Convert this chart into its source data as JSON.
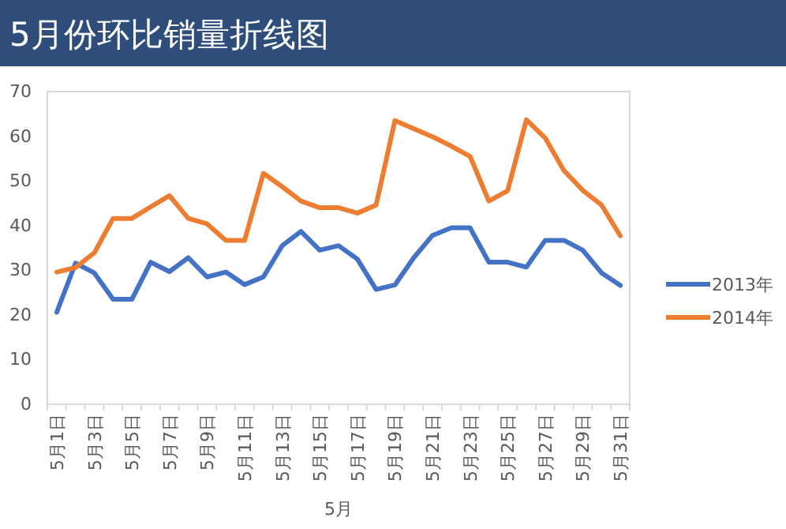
{
  "chart_data": {
    "type": "line",
    "title": "5月份环比销量折线图",
    "xlabel": "5月",
    "categories": [
      "5月1日",
      null,
      "5月3日",
      null,
      "5月5日",
      null,
      "5月7日",
      null,
      "5月9日",
      null,
      "5月11日",
      null,
      "5月13日",
      null,
      "5月15日",
      null,
      "5月17日",
      null,
      "5月19日",
      null,
      "5月21日",
      null,
      "5月23日",
      null,
      "5月25日",
      null,
      "5月27日",
      null,
      "5月29日",
      null,
      "5月31日"
    ],
    "series": [
      {
        "name": "2013年",
        "color": "#4472c4",
        "values": [
          20.6,
          31.6,
          29.4,
          23.5,
          23.5,
          31.8,
          29.7,
          32.8,
          28.5,
          29.6,
          26.8,
          28.5,
          35.5,
          38.7,
          34.5,
          35.5,
          32.5,
          25.7,
          26.7,
          32.8,
          37.8,
          39.5,
          39.5,
          31.8,
          31.8,
          30.7,
          36.7,
          36.7,
          34.5,
          29.4,
          26.6
        ]
      },
      {
        "name": "2014年",
        "color": "#ed7d31",
        "values": [
          29.6,
          30.6,
          33.9,
          41.6,
          41.6,
          44.2,
          46.7,
          41.6,
          40.4,
          36.7,
          36.7,
          51.7,
          48.7,
          45.5,
          44,
          44,
          42.8,
          44.6,
          63.5,
          61.7,
          59.9,
          57.8,
          55.5,
          45.5,
          47.8,
          63.7,
          59.6,
          52.3,
          47.9,
          44.6,
          37.7
        ]
      }
    ],
    "ylim": [
      0,
      70
    ],
    "yticks": [
      0,
      10,
      20,
      30,
      40,
      50,
      60,
      70
    ],
    "legend": "right",
    "marker": "none",
    "line_style": "solid"
  }
}
